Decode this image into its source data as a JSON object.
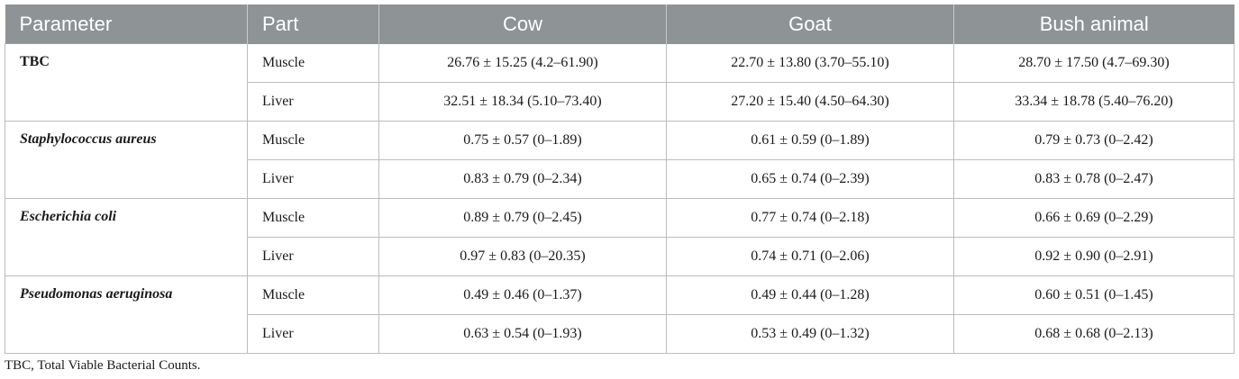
{
  "table": {
    "headers": [
      "Parameter",
      "Part",
      "Cow",
      "Goat",
      "Bush animal"
    ],
    "groups": [
      {
        "parameter": "TBC",
        "italic": false,
        "rows": [
          {
            "part": "Muscle",
            "cow": "26.76 ± 15.25 (4.2–61.90)",
            "goat": "22.70 ± 13.80 (3.70–55.10)",
            "bush": "28.70 ± 17.50 (4.7–69.30)"
          },
          {
            "part": "Liver",
            "cow": "32.51 ± 18.34 (5.10–73.40)",
            "goat": "27.20 ± 15.40 (4.50–64.30)",
            "bush": "33.34 ± 18.78 (5.40–76.20)"
          }
        ]
      },
      {
        "parameter": "Staphylococcus aureus",
        "italic": true,
        "rows": [
          {
            "part": "Muscle",
            "cow": "0.75 ± 0.57 (0–1.89)",
            "goat": "0.61 ± 0.59 (0–1.89)",
            "bush": "0.79 ± 0.73 (0–2.42)"
          },
          {
            "part": "Liver",
            "cow": "0.83 ± 0.79 (0–2.34)",
            "goat": "0.65 ± 0.74 (0–2.39)",
            "bush": "0.83 ± 0.78 (0–2.47)"
          }
        ]
      },
      {
        "parameter": "Escherichia coli",
        "italic": true,
        "rows": [
          {
            "part": "Muscle",
            "cow": "0.89 ± 0.79 (0–2.45)",
            "goat": "0.77 ± 0.74 (0–2.18)",
            "bush": "0.66 ± 0.69 (0–2.29)"
          },
          {
            "part": "Liver",
            "cow": "0.97 ± 0.83 (0–20.35)",
            "goat": "0.74 ± 0.71 (0–2.06)",
            "bush": "0.92 ± 0.90 (0–2.91)"
          }
        ]
      },
      {
        "parameter": "Pseudomonas aeruginosa",
        "italic": true,
        "rows": [
          {
            "part": "Muscle",
            "cow": "0.49 ± 0.46 (0–1.37)",
            "goat": "0.49 ± 0.44 (0–1.28)",
            "bush": "0.60 ± 0.51 (0–1.45)"
          },
          {
            "part": "Liver",
            "cow": "0.63 ± 0.54 (0–1.93)",
            "goat": "0.53 ± 0.49 (0–1.32)",
            "bush": "0.68 ± 0.68 (0–2.13)"
          }
        ]
      }
    ]
  },
  "footnote": "TBC, Total Viable Bacterial Counts.",
  "colors": {
    "header_bg": "#8e9396",
    "header_text": "#ffffff",
    "border": "#b9bcbe"
  }
}
